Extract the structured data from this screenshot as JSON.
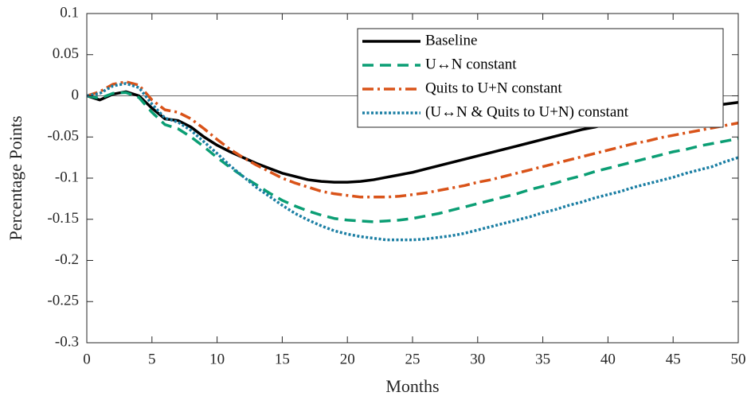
{
  "chart_data": {
    "type": "line",
    "xlabel": "Months",
    "ylabel": "Percentage Points",
    "x": [
      0,
      1,
      2,
      3,
      4,
      5,
      6,
      7,
      8,
      9,
      10,
      11,
      12,
      13,
      14,
      15,
      16,
      17,
      18,
      19,
      20,
      21,
      22,
      23,
      24,
      25,
      26,
      27,
      28,
      29,
      30,
      31,
      32,
      33,
      34,
      35,
      36,
      37,
      38,
      39,
      40,
      41,
      42,
      43,
      44,
      45,
      46,
      47,
      48,
      49,
      50
    ],
    "xlim": [
      0,
      50
    ],
    "xticks": [
      0,
      5,
      10,
      15,
      20,
      25,
      30,
      35,
      40,
      45,
      50
    ],
    "ylim": [
      -0.3,
      0.1
    ],
    "yticks": [
      0.1,
      0.05,
      0,
      -0.05,
      -0.1,
      -0.15,
      -0.2,
      -0.25,
      -0.3
    ],
    "hline": 0,
    "legend": "upper right",
    "series": [
      {
        "name": "Baseline",
        "color": "#000000",
        "dash": "solid",
        "values": [
          0,
          -0.005,
          0.002,
          0.005,
          0,
          -0.015,
          -0.028,
          -0.03,
          -0.038,
          -0.05,
          -0.06,
          -0.068,
          -0.075,
          -0.082,
          -0.088,
          -0.094,
          -0.098,
          -0.102,
          -0.104,
          -0.105,
          -0.105,
          -0.104,
          -0.102,
          -0.099,
          -0.096,
          -0.093,
          -0.089,
          -0.085,
          -0.081,
          -0.077,
          -0.073,
          -0.069,
          -0.065,
          -0.061,
          -0.057,
          -0.053,
          -0.049,
          -0.045,
          -0.041,
          -0.038,
          -0.034,
          -0.031,
          -0.028,
          -0.025,
          -0.022,
          -0.019,
          -0.017,
          -0.014,
          -0.012,
          -0.01,
          -0.008
        ]
      },
      {
        "name": "U↔N constant",
        "color": "#0b9e74",
        "dash": "dashed",
        "values": [
          0,
          -0.003,
          0.003,
          0.004,
          -0.002,
          -0.02,
          -0.035,
          -0.04,
          -0.05,
          -0.062,
          -0.075,
          -0.087,
          -0.098,
          -0.108,
          -0.118,
          -0.127,
          -0.134,
          -0.14,
          -0.145,
          -0.149,
          -0.151,
          -0.152,
          -0.153,
          -0.152,
          -0.151,
          -0.149,
          -0.146,
          -0.143,
          -0.139,
          -0.135,
          -0.131,
          -0.127,
          -0.123,
          -0.119,
          -0.114,
          -0.11,
          -0.106,
          -0.101,
          -0.097,
          -0.092,
          -0.088,
          -0.084,
          -0.08,
          -0.076,
          -0.072,
          -0.068,
          -0.065,
          -0.061,
          -0.058,
          -0.055,
          -0.052
        ]
      },
      {
        "name": "Quits to U+N constant",
        "color": "#d95319",
        "dash": "dashdot",
        "values": [
          0,
          0.005,
          0.014,
          0.017,
          0.013,
          -0.005,
          -0.017,
          -0.02,
          -0.028,
          -0.04,
          -0.053,
          -0.065,
          -0.075,
          -0.084,
          -0.092,
          -0.1,
          -0.106,
          -0.111,
          -0.116,
          -0.119,
          -0.121,
          -0.123,
          -0.123,
          -0.123,
          -0.122,
          -0.12,
          -0.118,
          -0.115,
          -0.112,
          -0.109,
          -0.105,
          -0.102,
          -0.098,
          -0.094,
          -0.09,
          -0.086,
          -0.082,
          -0.078,
          -0.074,
          -0.07,
          -0.066,
          -0.062,
          -0.058,
          -0.055,
          -0.051,
          -0.048,
          -0.045,
          -0.042,
          -0.039,
          -0.036,
          -0.033
        ]
      },
      {
        "name": "(U↔N & Quits to U+N) constant",
        "color": "#1a7ea3",
        "dash": "dotted",
        "values": [
          0,
          0.003,
          0.012,
          0.015,
          0.01,
          -0.01,
          -0.027,
          -0.032,
          -0.042,
          -0.056,
          -0.07,
          -0.085,
          -0.098,
          -0.111,
          -0.122,
          -0.133,
          -0.143,
          -0.151,
          -0.158,
          -0.164,
          -0.168,
          -0.171,
          -0.173,
          -0.175,
          -0.175,
          -0.175,
          -0.174,
          -0.172,
          -0.17,
          -0.167,
          -0.163,
          -0.159,
          -0.155,
          -0.151,
          -0.147,
          -0.142,
          -0.138,
          -0.133,
          -0.129,
          -0.124,
          -0.12,
          -0.116,
          -0.111,
          -0.107,
          -0.103,
          -0.099,
          -0.094,
          -0.09,
          -0.086,
          -0.08,
          -0.075
        ]
      }
    ]
  }
}
